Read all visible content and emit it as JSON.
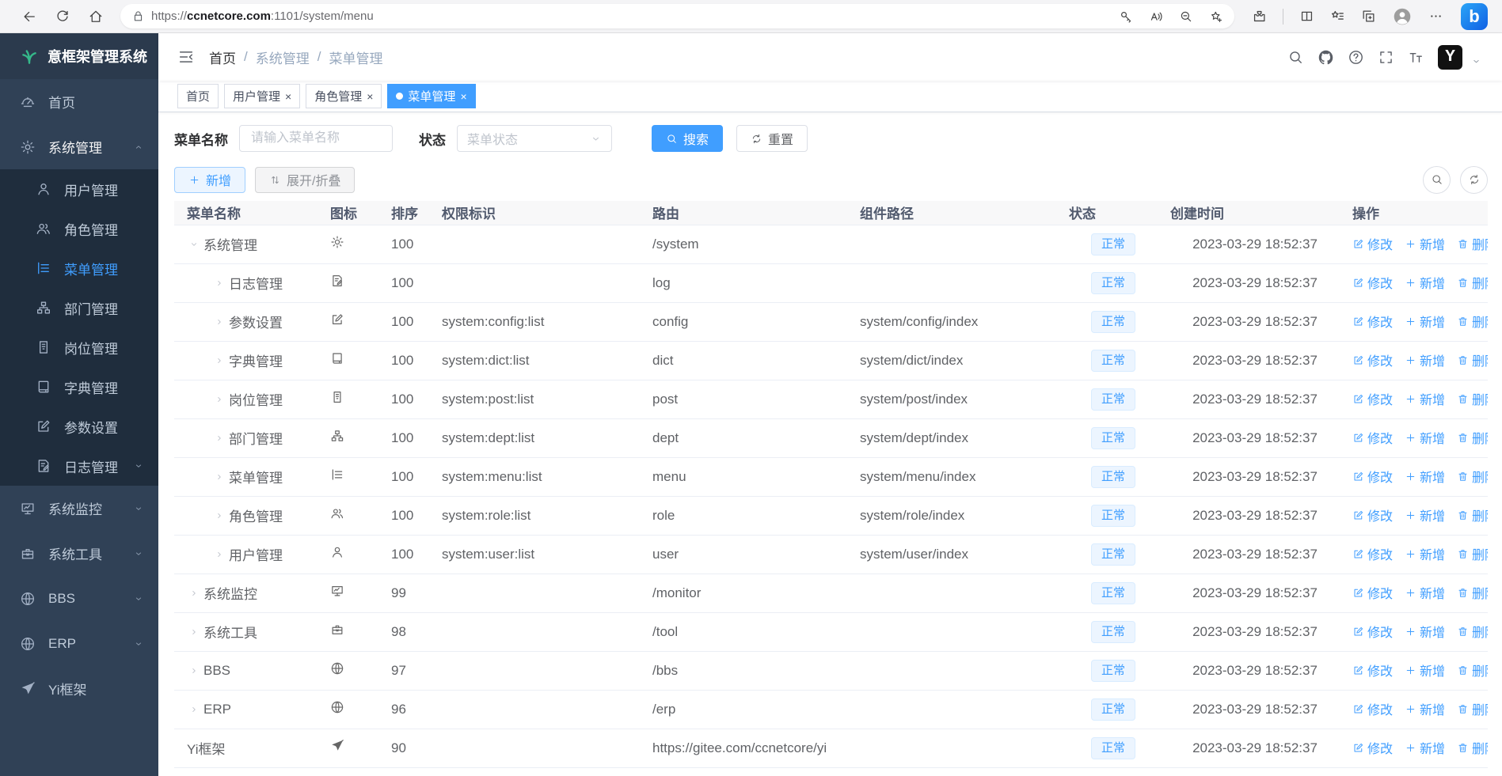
{
  "browser": {
    "url": {
      "scheme": "https://",
      "host": "ccnetcore.com",
      "rest": ":1101/system/menu"
    }
  },
  "sidebar": {
    "logo_title": "意框架管理系统",
    "items": [
      {
        "id": "home",
        "label": "首页",
        "icon": "dashboard",
        "level": 0
      },
      {
        "id": "system",
        "label": "系统管理",
        "icon": "gear",
        "level": 0,
        "caret": "up",
        "opened": true
      },
      {
        "id": "user",
        "label": "用户管理",
        "icon": "user",
        "level": 1
      },
      {
        "id": "role",
        "label": "角色管理",
        "icon": "users",
        "level": 1
      },
      {
        "id": "menu",
        "label": "菜单管理",
        "icon": "tree-table",
        "level": 1,
        "active": true
      },
      {
        "id": "dept",
        "label": "部门管理",
        "icon": "tree",
        "level": 1
      },
      {
        "id": "post",
        "label": "岗位管理",
        "icon": "post",
        "level": 1
      },
      {
        "id": "dict",
        "label": "字典管理",
        "icon": "dict",
        "level": 1
      },
      {
        "id": "config",
        "label": "参数设置",
        "icon": "edit",
        "level": 1
      },
      {
        "id": "log",
        "label": "日志管理",
        "icon": "log",
        "level": 1,
        "caret": "down"
      },
      {
        "id": "monitor",
        "label": "系统监控",
        "icon": "monitor",
        "level": 0,
        "caret": "down"
      },
      {
        "id": "tool",
        "label": "系统工具",
        "icon": "toolbox",
        "level": 0,
        "caret": "down"
      },
      {
        "id": "bbs",
        "label": "BBS",
        "icon": "globe",
        "level": 0,
        "caret": "down"
      },
      {
        "id": "erp",
        "label": "ERP",
        "icon": "globe",
        "level": 0,
        "caret": "down"
      },
      {
        "id": "yi",
        "label": "Yi框架",
        "icon": "plane",
        "level": 0
      }
    ]
  },
  "navbar": {
    "breadcrumb": [
      "首页",
      "系统管理",
      "菜单管理"
    ]
  },
  "tabs": [
    {
      "label": "首页",
      "closable": false,
      "active": false
    },
    {
      "label": "用户管理",
      "closable": true,
      "active": false
    },
    {
      "label": "角色管理",
      "closable": true,
      "active": false
    },
    {
      "label": "菜单管理",
      "closable": true,
      "active": true
    }
  ],
  "filters": {
    "name_label": "菜单名称",
    "name_placeholder": "请输入菜单名称",
    "status_label": "状态",
    "status_placeholder": "菜单状态",
    "search_label": "搜索",
    "reset_label": "重置"
  },
  "toolbar": {
    "add_label": "新增",
    "toggle_label": "展开/折叠"
  },
  "table": {
    "columns": [
      "菜单名称",
      "图标",
      "排序",
      "权限标识",
      "路由",
      "组件路径",
      "状态",
      "创建时间",
      "操作"
    ],
    "status_label": "正常",
    "created_time": "2023-03-29 18:52:37",
    "row_actions": {
      "edit": "修改",
      "add": "新增",
      "delete": "删除"
    },
    "rows": [
      {
        "name": "系统管理",
        "icon": "gear",
        "level": 0,
        "expand": "open",
        "sort": "100",
        "perms": "",
        "route": "/system",
        "component": ""
      },
      {
        "name": "日志管理",
        "icon": "log",
        "level": 1,
        "expand": "closed",
        "sort": "100",
        "perms": "",
        "route": "log",
        "component": ""
      },
      {
        "name": "参数设置",
        "icon": "edit",
        "level": 1,
        "expand": "closed",
        "sort": "100",
        "perms": "system:config:list",
        "route": "config",
        "component": "system/config/index"
      },
      {
        "name": "字典管理",
        "icon": "dict",
        "level": 1,
        "expand": "closed",
        "sort": "100",
        "perms": "system:dict:list",
        "route": "dict",
        "component": "system/dict/index"
      },
      {
        "name": "岗位管理",
        "icon": "post",
        "level": 1,
        "expand": "closed",
        "sort": "100",
        "perms": "system:post:list",
        "route": "post",
        "component": "system/post/index"
      },
      {
        "name": "部门管理",
        "icon": "tree",
        "level": 1,
        "expand": "closed",
        "sort": "100",
        "perms": "system:dept:list",
        "route": "dept",
        "component": "system/dept/index"
      },
      {
        "name": "菜单管理",
        "icon": "tree-table",
        "level": 1,
        "expand": "closed",
        "sort": "100",
        "perms": "system:menu:list",
        "route": "menu",
        "component": "system/menu/index"
      },
      {
        "name": "角色管理",
        "icon": "users",
        "level": 1,
        "expand": "closed",
        "sort": "100",
        "perms": "system:role:list",
        "route": "role",
        "component": "system/role/index"
      },
      {
        "name": "用户管理",
        "icon": "user",
        "level": 1,
        "expand": "closed",
        "sort": "100",
        "perms": "system:user:list",
        "route": "user",
        "component": "system/user/index"
      },
      {
        "name": "系统监控",
        "icon": "monitor",
        "level": 0,
        "expand": "closed",
        "sort": "99",
        "perms": "",
        "route": "/monitor",
        "component": ""
      },
      {
        "name": "系统工具",
        "icon": "toolbox",
        "level": 0,
        "expand": "closed",
        "sort": "98",
        "perms": "",
        "route": "/tool",
        "component": ""
      },
      {
        "name": "BBS",
        "icon": "globe",
        "level": 0,
        "expand": "closed",
        "sort": "97",
        "perms": "",
        "route": "/bbs",
        "component": ""
      },
      {
        "name": "ERP",
        "icon": "globe",
        "level": 0,
        "expand": "closed",
        "sort": "96",
        "perms": "",
        "route": "/erp",
        "component": ""
      },
      {
        "name": "Yi框架",
        "icon": "plane",
        "level": 0,
        "expand": null,
        "sort": "90",
        "perms": "",
        "route": "https://gitee.com/ccnetcore/yi",
        "component": ""
      }
    ]
  },
  "colors": {
    "accent": "#409eff",
    "sidebar_bg": "#304156",
    "submenu_bg": "#1f2d3d",
    "badge_bg": "#ecf5ff",
    "badge_border": "#d9ecff",
    "badge_text": "#409eff"
  }
}
